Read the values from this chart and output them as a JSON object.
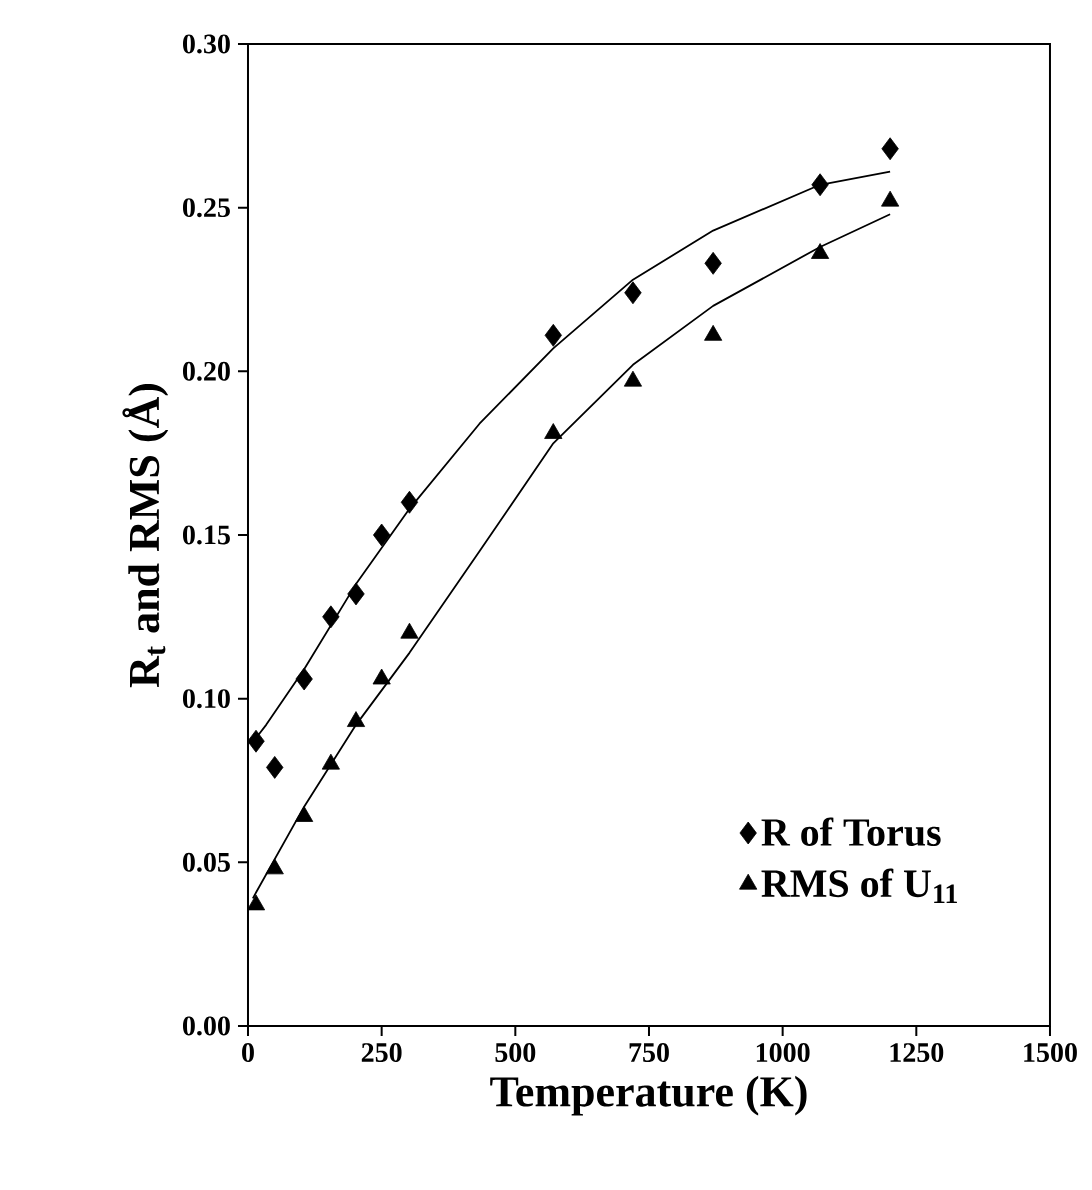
{
  "chart_data": {
    "type": "scatter",
    "xlabel": "Temperature (K)",
    "ylabel": "R$_{t}$ and RMS (Å)",
    "xlim": [
      0,
      1500
    ],
    "ylim": [
      0,
      0.3
    ],
    "xticks": [
      0,
      250,
      500,
      750,
      1000,
      1250,
      1500
    ],
    "yticks": [
      {
        "value": 0,
        "label": "0.00"
      },
      {
        "value": 0.05,
        "label": "0.05"
      },
      {
        "value": 0.1,
        "label": "0.10"
      },
      {
        "value": 0.15,
        "label": "0.15"
      },
      {
        "value": 0.2,
        "label": "0.20"
      },
      {
        "value": 0.25,
        "label": "0.25"
      },
      {
        "value": 0.3,
        "label": "0.30"
      }
    ],
    "grid": false,
    "legend": "bottom right",
    "series": [
      {
        "name": "R of Torus",
        "marker": "diamond",
        "color": "#000000",
        "x": [
          15,
          50,
          105,
          155,
          202,
          250,
          302,
          571,
          720,
          870,
          1070,
          1201
        ],
        "values": [
          0.087,
          0.079,
          0.106,
          0.125,
          0.132,
          0.15,
          0.16,
          0.211,
          0.224,
          0.233,
          0.257,
          0.268
        ]
      },
      {
        "name": "RMS of U$_{11}$",
        "marker": "triangle",
        "color": "#000000",
        "x": [
          15,
          50,
          105,
          155,
          202,
          250,
          302,
          571,
          720,
          870,
          1070,
          1201
        ],
        "values": [
          0.037,
          0.048,
          0.064,
          0.08,
          0.093,
          0.106,
          0.12,
          0.181,
          0.197,
          0.211,
          0.236,
          0.252
        ]
      },
      {
        "type": "line",
        "marker": "none",
        "line_style": "solid",
        "color": "#000000",
        "x": [
          15,
          34,
          105,
          202,
          302,
          433,
          571,
          720,
          870,
          1070,
          1201
        ],
        "values": [
          0.088,
          0.092,
          0.109,
          0.135,
          0.158,
          0.184,
          0.207,
          0.228,
          0.243,
          0.257,
          0.261
        ]
      },
      {
        "type": "line",
        "marker": "none",
        "line_style": "solid",
        "color": "#000000",
        "x": [
          9,
          105,
          202,
          302,
          433,
          571,
          720,
          870,
          1070,
          1201
        ],
        "values": [
          0.039,
          0.067,
          0.092,
          0.114,
          0.145,
          0.178,
          0.202,
          0.22,
          0.238,
          0.248
        ]
      }
    ]
  }
}
